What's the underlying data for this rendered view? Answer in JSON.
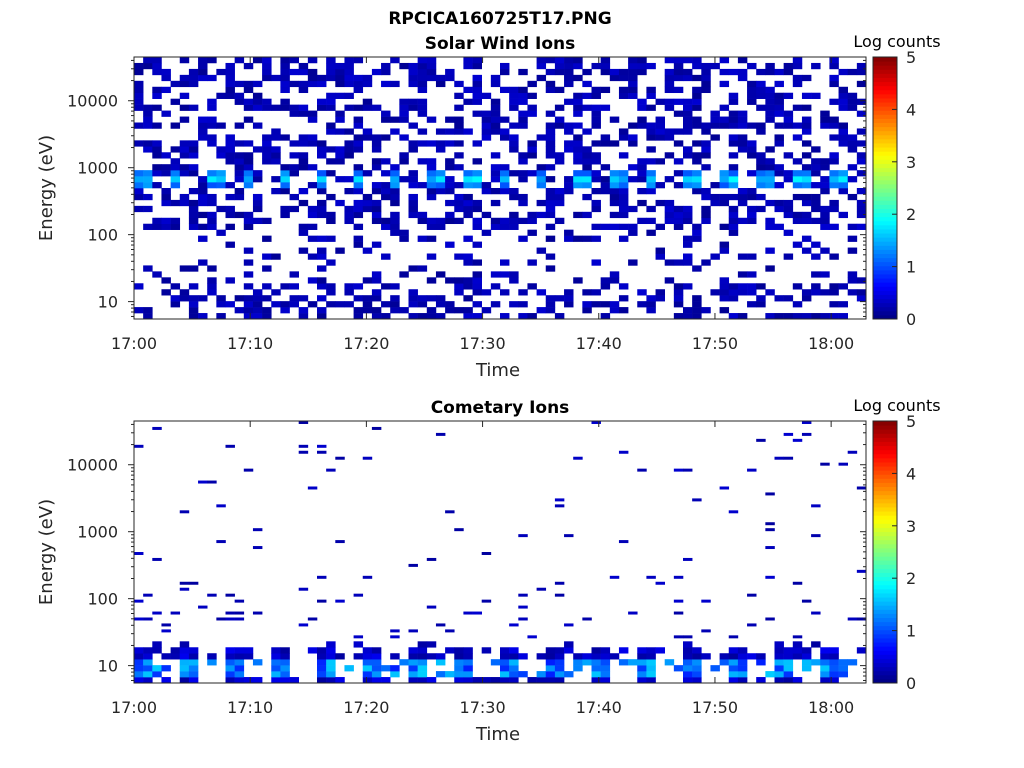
{
  "figure": {
    "suptitle": "RPCICA160725T17.PNG"
  },
  "chart_data": [
    {
      "type": "heatmap",
      "title": "Solar Wind Ions",
      "xlabel": "Time",
      "ylabel": "Energy (eV)",
      "x_ticks": [
        "17:00",
        "17:10",
        "17:20",
        "17:30",
        "17:40",
        "17:50",
        "18:00"
      ],
      "x_range_minutes": [
        0,
        63
      ],
      "y_scale": "log",
      "y_ticks": [
        "10",
        "100",
        "1000",
        "10000"
      ],
      "y_range": [
        5.5,
        45000
      ],
      "colorbar": {
        "label": "Log counts",
        "range": [
          0,
          5
        ],
        "ticks": [
          "0",
          "1",
          "2",
          "3",
          "4",
          "5"
        ]
      },
      "peak_band_energy_eV": 600,
      "peak_band_log_counts": 1.7
    },
    {
      "type": "heatmap",
      "title": "Cometary Ions",
      "xlabel": "Time",
      "ylabel": "Energy (eV)",
      "x_ticks": [
        "17:00",
        "17:10",
        "17:20",
        "17:30",
        "17:40",
        "17:50",
        "18:00"
      ],
      "x_range_minutes": [
        0,
        63
      ],
      "y_scale": "log",
      "y_ticks": [
        "10",
        "100",
        "1000",
        "10000"
      ],
      "y_range": [
        5.5,
        45000
      ],
      "colorbar": {
        "label": "Log counts",
        "range": [
          0,
          5
        ],
        "ticks": [
          "0",
          "1",
          "2",
          "3",
          "4",
          "5"
        ]
      },
      "peak_band_energy_eV": 12,
      "peak_band_log_counts": 1.5
    }
  ]
}
